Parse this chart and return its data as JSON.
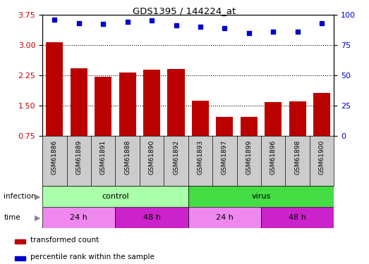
{
  "title": "GDS1395 / 144224_at",
  "samples": [
    "GSM61886",
    "GSM61889",
    "GSM61891",
    "GSM61888",
    "GSM61890",
    "GSM61892",
    "GSM61893",
    "GSM61897",
    "GSM61899",
    "GSM61896",
    "GSM61898",
    "GSM61900"
  ],
  "bar_values": [
    3.06,
    2.42,
    2.22,
    2.32,
    2.38,
    2.4,
    1.62,
    1.22,
    1.22,
    1.58,
    1.6,
    1.82
  ],
  "percentile_values": [
    96,
    93,
    92,
    94,
    95,
    91,
    90,
    89,
    85,
    86,
    86,
    93
  ],
  "ylim_left": [
    0.75,
    3.75
  ],
  "ylim_right": [
    0,
    100
  ],
  "yticks_left": [
    0.75,
    1.5,
    2.25,
    3.0,
    3.75
  ],
  "yticks_right": [
    0,
    25,
    50,
    75,
    100
  ],
  "bar_color": "#bb0000",
  "dot_color": "#0000cc",
  "infection_groups": [
    {
      "label": "control",
      "start": 0,
      "end": 6,
      "color": "#aaffaa"
    },
    {
      "label": "virus",
      "start": 6,
      "end": 12,
      "color": "#44dd44"
    }
  ],
  "time_groups": [
    {
      "label": "24 h",
      "start": 0,
      "end": 3,
      "color": "#ee88ee"
    },
    {
      "label": "48 h",
      "start": 3,
      "end": 6,
      "color": "#cc22cc"
    },
    {
      "label": "24 h",
      "start": 6,
      "end": 9,
      "color": "#ee88ee"
    },
    {
      "label": "48 h",
      "start": 9,
      "end": 12,
      "color": "#cc22cc"
    }
  ],
  "legend_items": [
    {
      "label": "transformed count",
      "color": "#bb0000"
    },
    {
      "label": "percentile rank within the sample",
      "color": "#0000cc"
    }
  ],
  "bg_color": "#ffffff",
  "tick_label_color_left": "#cc0000",
  "tick_label_color_right": "#0000cc",
  "infection_label": "infection",
  "time_label": "time",
  "label_color": "#888888",
  "xticklabel_bg": "#cccccc"
}
